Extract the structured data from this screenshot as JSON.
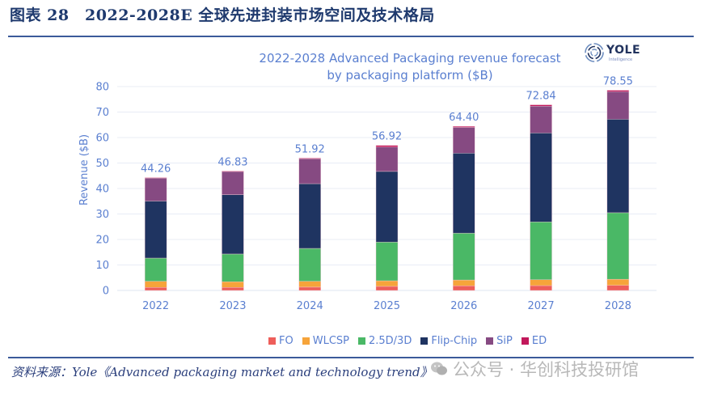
{
  "figure": {
    "title": "图表 28　2022-2028E 全球先进封装市场空间及技术格局",
    "source": "资料来源：Yole《Advanced packaging market and technology trend》",
    "watermark": "公众号 · 华创科技投研馆"
  },
  "logo": {
    "name": "YOLE",
    "subtitle": "Intelligence"
  },
  "chart_data": {
    "type": "bar",
    "stacked": true,
    "title": "2022-2028 Advanced Packaging revenue forecast by packaging platform ($B)",
    "title_lines": [
      "2022-2028 Advanced Packaging revenue forecast",
      "by packaging platform ($B)"
    ],
    "xlabel": "",
    "ylabel": "Revenue ($B)",
    "ylim": [
      0,
      80
    ],
    "yticks": [
      0,
      10,
      20,
      30,
      40,
      50,
      60,
      70,
      80
    ],
    "grid": true,
    "legend_position": "bottom",
    "categories": [
      "2022",
      "2023",
      "2024",
      "2025",
      "2026",
      "2027",
      "2028"
    ],
    "totals": [
      "44.26",
      "46.83",
      "51.92",
      "56.92",
      "64.40",
      "72.84",
      "78.55"
    ],
    "series": [
      {
        "name": "FO",
        "color": "#ee5e5a",
        "values": [
          1.2,
          1.2,
          1.3,
          1.6,
          1.8,
          1.9,
          2.0
        ]
      },
      {
        "name": "WLCSP",
        "color": "#f6a43a",
        "values": [
          2.4,
          2.2,
          2.3,
          2.2,
          2.3,
          2.3,
          2.4
        ]
      },
      {
        "name": "2.5D/3D",
        "color": "#4ab866",
        "values": [
          9.1,
          10.9,
          12.9,
          15.2,
          18.4,
          22.7,
          26.1
        ]
      },
      {
        "name": "Flip-Chip",
        "color": "#1f3461",
        "values": [
          22.4,
          23.3,
          25.4,
          27.7,
          31.4,
          34.9,
          36.7
        ]
      },
      {
        "name": "SiP",
        "color": "#864a82",
        "values": [
          9.1,
          9.2,
          9.8,
          9.6,
          10.1,
          10.5,
          10.8
        ]
      },
      {
        "name": "ED",
        "color": "#c2185b",
        "values": [
          0.06,
          0.03,
          0.22,
          0.62,
          0.4,
          0.54,
          0.55
        ]
      }
    ]
  }
}
